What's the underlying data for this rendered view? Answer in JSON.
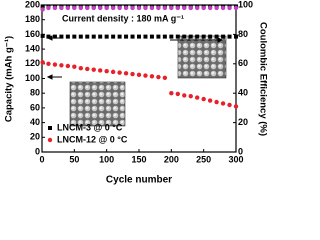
{
  "chart_data": {
    "type": "scatter",
    "annotation": "Current density : 180 mA g⁻¹",
    "x_label": "Cycle number",
    "y_label": "Capacity (mAh g⁻¹)",
    "y2_label": "Coulombic Efficiency (%)",
    "x": [
      1,
      10,
      20,
      30,
      40,
      50,
      60,
      70,
      80,
      90,
      100,
      110,
      120,
      130,
      140,
      150,
      160,
      170,
      180,
      190,
      200,
      210,
      220,
      230,
      240,
      250,
      260,
      270,
      280,
      290,
      300
    ],
    "series": [
      {
        "name": "LNCM-3 @ 0 °C",
        "color": "#000000",
        "marker": "square",
        "values": [
          158,
          157,
          157,
          157,
          157,
          157,
          157,
          157,
          157,
          157,
          157,
          157,
          157,
          157,
          157,
          157,
          157,
          157,
          157,
          157,
          157,
          157,
          157,
          157,
          157,
          157,
          157,
          157,
          157,
          157,
          157
        ]
      },
      {
        "name": "LNCM-12 @ 0 °C",
        "color": "#e8202a",
        "marker": "circle",
        "values": [
          122,
          120,
          119,
          118,
          117,
          116,
          114,
          113,
          112,
          111,
          110,
          109,
          108,
          107,
          106,
          105,
          104,
          103,
          102,
          101,
          80,
          79,
          77,
          76,
          74,
          72,
          70,
          68,
          66,
          64,
          62
        ]
      },
      {
        "color": "#000000",
        "marker": "square",
        "axis": "y2",
        "values": [
          99,
          99,
          99,
          99,
          99,
          99,
          99,
          99,
          99,
          99,
          99,
          99,
          99,
          99,
          99,
          99,
          99,
          99,
          99,
          99,
          99,
          99,
          99,
          99,
          99,
          99,
          99,
          99,
          99,
          99,
          99
        ]
      },
      {
        "color": "#c040c0",
        "marker": "circle",
        "axis": "y2",
        "values": [
          97,
          98,
          98,
          98,
          98,
          98,
          98,
          98,
          98,
          98,
          98,
          98,
          98,
          98,
          98,
          98,
          98,
          98,
          98,
          98,
          98,
          98,
          98,
          98,
          98,
          98,
          98,
          98,
          98,
          98,
          98
        ]
      }
    ],
    "xlim": [
      0,
      300
    ],
    "xticks": [
      0,
      50,
      100,
      150,
      200,
      250,
      300
    ],
    "ylim": [
      0,
      200
    ],
    "yticks": [
      0,
      20,
      40,
      60,
      80,
      100,
      120,
      140,
      160,
      180,
      200
    ],
    "y2lim": [
      0,
      100
    ],
    "y2ticks": [
      0,
      20,
      40,
      60,
      80,
      100
    ],
    "legend": "lower left"
  }
}
